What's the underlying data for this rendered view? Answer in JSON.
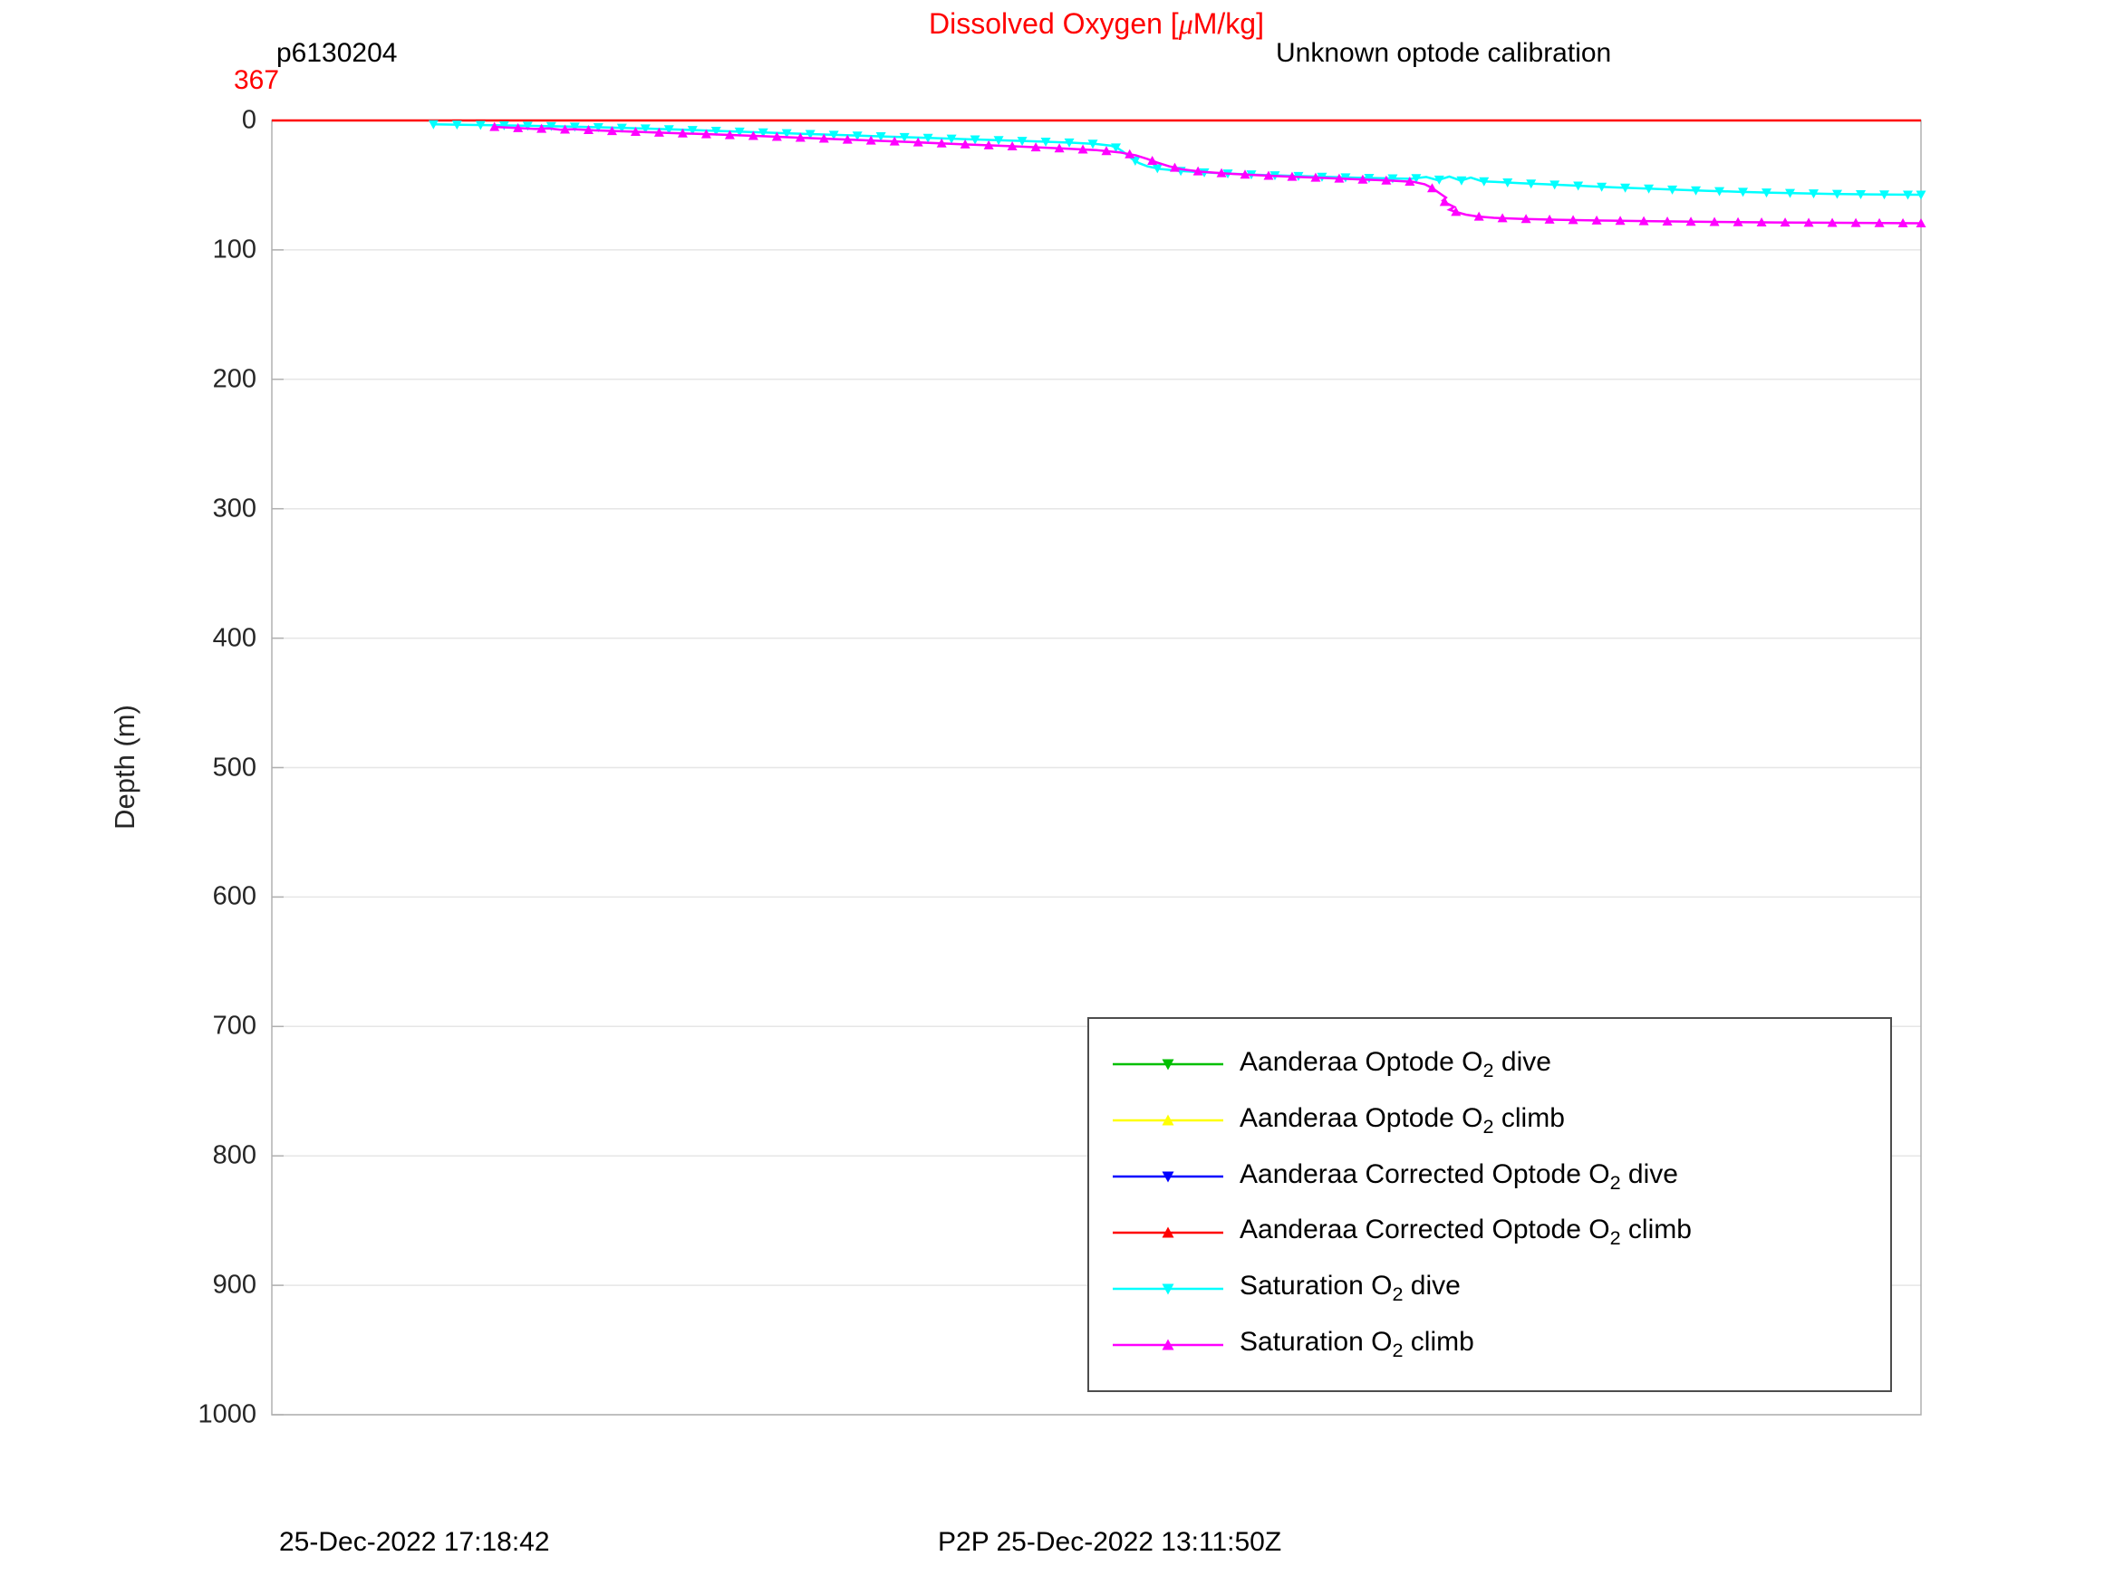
{
  "title": {
    "pre": "Dissolved Oxygen [",
    "mu": "μ",
    "post": "M/kg]",
    "color": "#ff0000"
  },
  "header": {
    "dive_id": "p6130204",
    "calibration_note": "Unknown optode calibration",
    "surface_value": "367",
    "surface_value_color": "#ff0000"
  },
  "footer": {
    "left_timestamp": "25-Dec-2022 17:18:42",
    "right_timestamp": "P2P 25-Dec-2022 13:11:50Z"
  },
  "axes": {
    "ylabel": "Depth (m)",
    "ylim": [
      0,
      1000
    ],
    "y_ticks": [
      0,
      100,
      200,
      300,
      400,
      500,
      600,
      700,
      800,
      900,
      1000
    ],
    "x_tick_labels_visible": false
  },
  "legend": {
    "items": [
      {
        "id": "aanderaa-optode-o2-dive",
        "color": "#00bf00",
        "marker": "down",
        "label_pre": "Aanderaa Optode O",
        "label_sub": "2",
        "label_post": " dive"
      },
      {
        "id": "aanderaa-optode-o2-climb",
        "color": "#ffff00",
        "marker": "up",
        "label_pre": "Aanderaa Optode O",
        "label_sub": "2",
        "label_post": " climb"
      },
      {
        "id": "aanderaa-corrected-optode-o2-dive",
        "color": "#0000ff",
        "marker": "down",
        "label_pre": "Aanderaa Corrected Optode O",
        "label_sub": "2",
        "label_post": " dive"
      },
      {
        "id": "aanderaa-corrected-optode-o2-climb",
        "color": "#ff0000",
        "marker": "up",
        "label_pre": "Aanderaa Corrected Optode O",
        "label_sub": "2",
        "label_post": " climb"
      },
      {
        "id": "saturation-o2-dive",
        "color": "#00ffff",
        "marker": "down",
        "label_pre": "Saturation O",
        "label_sub": "2",
        "label_post": " dive"
      },
      {
        "id": "saturation-o2-climb",
        "color": "#ff00ff",
        "marker": "up",
        "label_pre": "Saturation O",
        "label_sub": "2",
        "label_post": " climb"
      }
    ]
  },
  "chart_data": {
    "type": "line",
    "title": "Dissolved Oxygen [μM/kg]",
    "ylabel": "Depth (m)",
    "ylim": [
      0,
      1000
    ],
    "y_ticks": [
      0,
      100,
      200,
      300,
      400,
      500,
      600,
      700,
      800,
      900,
      1000
    ],
    "grid": "horizontal",
    "grid_color": "#e6e6e6",
    "axis_color": "#b0b0b0",
    "legend_position": "bottom-right-inside",
    "x_axis": {
      "tick_labels_visible": false,
      "points_x_encoding": "fraction-of-axis-width"
    },
    "series": [
      {
        "id": "aanderaa-optode-o2-dive",
        "color": "#00bf00",
        "marker": "down",
        "draw_markers": true,
        "points": []
      },
      {
        "id": "aanderaa-optode-o2-climb",
        "color": "#ffff00",
        "marker": "up",
        "draw_markers": true,
        "points": []
      },
      {
        "id": "aanderaa-corrected-optode-o2-dive",
        "color": "#0000ff",
        "marker": "down",
        "draw_markers": true,
        "points": []
      },
      {
        "id": "aanderaa-corrected-optode-o2-climb",
        "color": "#ff0000",
        "marker": "up",
        "draw_markers": false,
        "points": [
          [
            0,
            0
          ],
          [
            1,
            0
          ]
        ]
      },
      {
        "id": "saturation-o2-dive",
        "color": "#00ffff",
        "marker": "down",
        "draw_markers": true,
        "points": [
          [
            0.098,
            3
          ],
          [
            0.125,
            3.5
          ],
          [
            0.152,
            4
          ],
          [
            0.178,
            4.6
          ],
          [
            0.204,
            5.4
          ],
          [
            0.228,
            6.3
          ],
          [
            0.252,
            7.3
          ],
          [
            0.276,
            8.3
          ],
          [
            0.3,
            9.4
          ],
          [
            0.324,
            10.4
          ],
          [
            0.348,
            11.4
          ],
          [
            0.372,
            12.4
          ],
          [
            0.396,
            13.4
          ],
          [
            0.42,
            14.4
          ],
          [
            0.444,
            15.4
          ],
          [
            0.466,
            16.3
          ],
          [
            0.486,
            17.2
          ],
          [
            0.5,
            18.2
          ],
          [
            0.509,
            19.5
          ],
          [
            0.513,
            21.5
          ],
          [
            0.516,
            24
          ],
          [
            0.519,
            27
          ],
          [
            0.522,
            30
          ],
          [
            0.526,
            33
          ],
          [
            0.531,
            35.5
          ],
          [
            0.539,
            37.5
          ],
          [
            0.551,
            39
          ],
          [
            0.566,
            40.2
          ],
          [
            0.583,
            41.2
          ],
          [
            0.601,
            42.1
          ],
          [
            0.62,
            42.9
          ],
          [
            0.639,
            43.6
          ],
          [
            0.658,
            44.2
          ],
          [
            0.676,
            44.7
          ],
          [
            0.691,
            45.1
          ],
          [
            0.7,
            43.7
          ],
          [
            0.707,
            46.1
          ],
          [
            0.714,
            43.3
          ],
          [
            0.721,
            46.5
          ],
          [
            0.727,
            44.1
          ],
          [
            0.734,
            47
          ],
          [
            0.744,
            47.6
          ],
          [
            0.757,
            48.4
          ],
          [
            0.772,
            49.3
          ],
          [
            0.79,
            50.3
          ],
          [
            0.809,
            51.4
          ],
          [
            0.829,
            52.4
          ],
          [
            0.849,
            53.4
          ],
          [
            0.869,
            54.3
          ],
          [
            0.889,
            55.1
          ],
          [
            0.909,
            55.8
          ],
          [
            0.929,
            56.3
          ],
          [
            0.949,
            56.8
          ],
          [
            0.969,
            57.1
          ],
          [
            0.986,
            57.3
          ],
          [
            1,
            57.4
          ]
        ]
      },
      {
        "id": "saturation-o2-climb",
        "color": "#ff00ff",
        "marker": "up",
        "draw_markers": true,
        "points": [
          [
            0.135,
            5
          ],
          [
            0.148,
            5.8
          ],
          [
            0.16,
            6.6
          ],
          [
            0.168,
            6.1
          ],
          [
            0.175,
            7.2
          ],
          [
            0.183,
            6.7
          ],
          [
            0.195,
            7.6
          ],
          [
            0.215,
            8.5
          ],
          [
            0.24,
            9.6
          ],
          [
            0.268,
            10.8
          ],
          [
            0.298,
            12.2
          ],
          [
            0.328,
            13.7
          ],
          [
            0.358,
            15.2
          ],
          [
            0.388,
            16.7
          ],
          [
            0.418,
            18.3
          ],
          [
            0.448,
            19.9
          ],
          [
            0.476,
            21.4
          ],
          [
            0.5,
            22.9
          ],
          [
            0.514,
            24.6
          ],
          [
            0.524,
            27
          ],
          [
            0.531,
            29.8
          ],
          [
            0.537,
            32.6
          ],
          [
            0.544,
            35.4
          ],
          [
            0.552,
            37.8
          ],
          [
            0.564,
            39.6
          ],
          [
            0.579,
            41
          ],
          [
            0.597,
            42.3
          ],
          [
            0.617,
            43.4
          ],
          [
            0.637,
            44.4
          ],
          [
            0.657,
            45.4
          ],
          [
            0.677,
            46.4
          ],
          [
            0.692,
            47.4
          ],
          [
            0.699,
            49.3
          ],
          [
            0.703,
            51.8
          ],
          [
            0.706,
            54.4
          ],
          [
            0.709,
            57
          ],
          [
            0.712,
            59.6
          ],
          [
            0.71,
            62
          ],
          [
            0.713,
            64.4
          ],
          [
            0.717,
            66.8
          ],
          [
            0.714,
            69
          ],
          [
            0.719,
            71
          ],
          [
            0.724,
            72.8
          ],
          [
            0.731,
            74.2
          ],
          [
            0.741,
            75.2
          ],
          [
            0.757,
            76
          ],
          [
            0.779,
            76.7
          ],
          [
            0.806,
            77.3
          ],
          [
            0.838,
            77.9
          ],
          [
            0.874,
            78.4
          ],
          [
            0.912,
            78.8
          ],
          [
            0.952,
            79.1
          ],
          [
            1,
            79.4
          ]
        ]
      }
    ]
  }
}
